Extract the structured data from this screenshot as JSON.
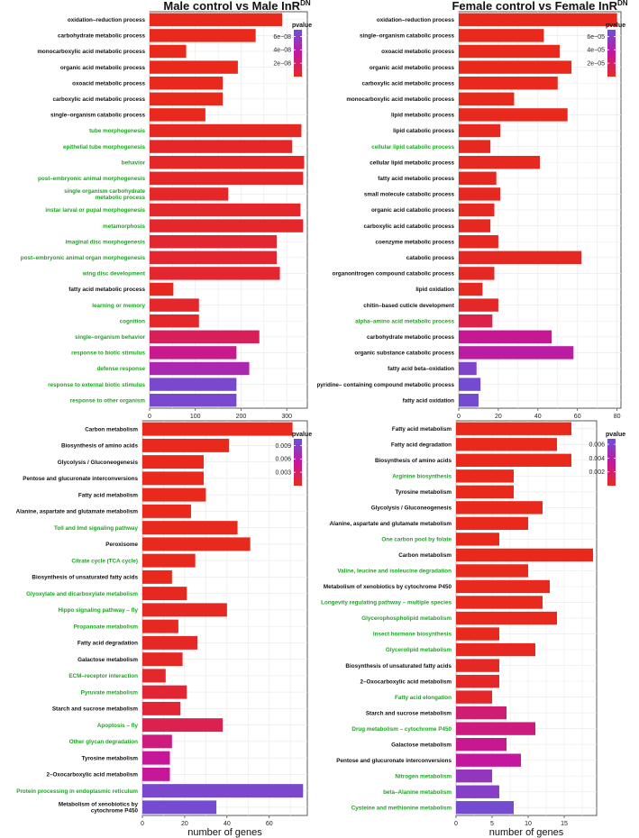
{
  "x_axis_label": "number of genes",
  "legend_title": "pvalue",
  "colors": {
    "low": "#e8291c",
    "mid": "#c4169f",
    "high": "#6a52d6",
    "green": "#1fa224",
    "black": "#111111"
  },
  "chart_data": [
    {
      "type": "bar",
      "title_main": "Male control vs Male InR",
      "title_sup": "DN",
      "xlim": [
        0,
        345
      ],
      "xticks": [
        0,
        100,
        200,
        300
      ],
      "legend_ticks": [
        2e-08,
        4e-08,
        6e-08
      ],
      "legend_labels": [
        "2e−08",
        "4e−08",
        "6e−08"
      ],
      "pmax": 7e-08,
      "categories": [
        "oxidation–reduction process",
        "carbohydrate metabolic process",
        "monocarboxylic acid metabolic process",
        "organic acid metabolic process",
        "oxoacid metabolic process",
        "carboxylic acid metabolic process",
        "single–organism catabolic process",
        "tube morphogenesis",
        "epithelial tube morphogenesis",
        "behavior",
        "post–embryonic animal morphogenesis",
        "single organism carbohydrate|metabolic process",
        "instar larval or pupal morphogenesis",
        "metamorphosis",
        "imaginal disc morphogenesis",
        "post–embryonic animal organ morphogenesis",
        "wing disc development",
        "fatty acid metabolic process",
        "learning or memory",
        "cognition",
        "single–organism behavior",
        "response to biotic stimulus",
        "defense response",
        "response to external biotic stimulus",
        "response to other organism"
      ],
      "values": [
        290,
        232,
        80,
        193,
        160,
        160,
        122,
        332,
        312,
        338,
        336,
        172,
        330,
        336,
        278,
        278,
        285,
        52,
        108,
        108,
        240,
        190,
        218,
        190,
        190
      ],
      "pvalues": [
        1e-10,
        1e-10,
        1e-10,
        1e-10,
        1e-10,
        1e-10,
        1e-10,
        2e-09,
        3e-09,
        3e-09,
        3e-09,
        3e-09,
        4e-09,
        4e-09,
        5e-09,
        5e-09,
        5e-09,
        1e-09,
        4e-09,
        4e-09,
        1.6e-08,
        3e-08,
        4.5e-08,
        6.4e-08,
        6.4e-08
      ],
      "green": [
        false,
        false,
        false,
        false,
        false,
        false,
        false,
        true,
        true,
        true,
        true,
        true,
        true,
        true,
        true,
        true,
        true,
        false,
        true,
        true,
        true,
        true,
        true,
        true,
        true
      ]
    },
    {
      "type": "bar",
      "title_main": "Female control vs Female InR",
      "title_sup": "DN",
      "xlim": [
        0,
        82
      ],
      "xticks": [
        0,
        20,
        40,
        60,
        80
      ],
      "legend_ticks": [
        2e-05,
        4e-05,
        6e-05
      ],
      "legend_labels": [
        "2e−05",
        "4e−05",
        "6e−05"
      ],
      "pmax": 7e-05,
      "categories": [
        "oxidation–reduction process",
        "single–organism catabolic process",
        "oxoacid metabolic process",
        "organic acid metabolic process",
        "carboxylic acid metabolic process",
        "monocarboxylic acid metabolic process",
        "lipid metabolic process",
        "lipid catabolic process",
        "cellular lipid catabolic process",
        "cellular lipid metabolic process",
        "fatty acid metabolic process",
        "small molecule catabolic process",
        "organic acid catabolic process",
        "carboxylic acid catabolic process",
        "coenzyme metabolic process",
        "catabolic process",
        "organonitrogen compound catabolic process",
        "lipid oxidation",
        "chitin–based cuticle development",
        "alpha–amino acid metabolic process",
        "carbohydrate metabolic process",
        "organic substance catabolic process",
        "fatty acid beta–oxidation",
        "pyridine– containing compound metabolic process",
        "fatty acid oxidation"
      ],
      "values": [
        80,
        43,
        51,
        57,
        50,
        28,
        55,
        21,
        16,
        41,
        19,
        21,
        18,
        16,
        20,
        62,
        18,
        12,
        20,
        17,
        47,
        58,
        9,
        11,
        10
      ],
      "pvalues": [
        1e-07,
        1e-07,
        1e-07,
        1e-07,
        1e-07,
        1e-07,
        2e-07,
        1e-06,
        1e-06,
        1e-06,
        1e-06,
        1e-06,
        1e-06,
        1e-06,
        1e-06,
        2e-06,
        2e-06,
        2e-06,
        3e-06,
        1.2e-05,
        3.2e-05,
        3.8e-05,
        6.2e-05,
        6.6e-05,
        6.6e-05
      ],
      "green": [
        false,
        false,
        false,
        false,
        false,
        false,
        false,
        false,
        true,
        false,
        false,
        false,
        false,
        false,
        false,
        false,
        false,
        false,
        false,
        true,
        false,
        false,
        false,
        false,
        false
      ]
    },
    {
      "type": "bar",
      "title_main": "",
      "title_sup": "",
      "xlim": [
        0,
        78
      ],
      "xticks": [
        0,
        20,
        40,
        60
      ],
      "legend_ticks": [
        0.003,
        0.006,
        0.009
      ],
      "legend_labels": [
        "0.003",
        "0.006",
        "0.009"
      ],
      "pmax": 0.0105,
      "categories": [
        "Carbon metabolism",
        "Biosynthesis of amino acids",
        "Glycolysis / Gluconeogenesis",
        "Pentose and glucuronate interconversions",
        "Fatty acid metabolism",
        "Alanine, aspartate and glutamate metabolism",
        "Toll and Imd signaling pathway",
        "Peroxisome",
        "Citrate cycle (TCA cycle)",
        "Biosynthesis of unsaturated fatty acids",
        "Glyoxylate and dicarboxylate metabolism",
        "Hippo signaling pathway – fly",
        "Propanoate metabolism",
        "Fatty acid degradation",
        "Galactose metabolism",
        "ECM–receptor interaction",
        "Pyruvate metabolism",
        "Starch and sucrose metabolism",
        "Apoptosis – fly",
        "Other glycan degradation",
        "Tyrosine metabolism",
        "2–Oxocarboxylic acid metabolism",
        "Protein processing in endoplasmic reticulum",
        "Metabolism of xenobiotics by|cytochrome P450"
      ],
      "values": [
        71,
        41,
        29,
        29,
        30,
        23,
        45,
        51,
        25,
        14,
        21,
        40,
        17,
        26,
        19,
        11,
        21,
        18,
        38,
        14,
        13,
        13,
        76,
        35
      ],
      "pvalues": [
        1e-05,
        1e-05,
        1e-05,
        1e-05,
        1e-05,
        1e-05,
        5e-05,
        5e-05,
        0.0001,
        0.0001,
        0.0002,
        0.0003,
        0.0003,
        0.0004,
        0.0004,
        0.0006,
        0.001,
        0.001,
        0.002,
        0.004,
        0.005,
        0.005,
        0.0095,
        0.01
      ],
      "green": [
        false,
        false,
        false,
        false,
        false,
        false,
        true,
        false,
        true,
        false,
        true,
        true,
        true,
        false,
        false,
        true,
        true,
        false,
        true,
        true,
        false,
        false,
        true,
        false
      ]
    },
    {
      "type": "bar",
      "title_main": "",
      "title_sup": "",
      "xlim": [
        0,
        19.5
      ],
      "xticks": [
        0,
        5,
        10,
        15
      ],
      "legend_ticks": [
        0.002,
        0.004,
        0.006
      ],
      "legend_labels": [
        "0.002",
        "0.004",
        "0.006"
      ],
      "pmax": 0.0068,
      "categories": [
        "Fatty acid metabolism",
        "Fatty acid degradation",
        "Biosynthesis of amino acids",
        "Arginine biosynthesis",
        "Tyrosine metabolism",
        "Glycolysis / Gluconeogenesis",
        "Alanine, aspartate and glutamate metabolism",
        "One carbon pool by folate",
        "Carbon metabolism",
        "Valine, leucine and isoleucine degradation",
        "Metabolism of xenobiotics by cytochrome P450",
        "Longevity regulating pathway – multiple species",
        "Glycerophospholipid metabolism",
        "Insect hormone biosynthesis",
        "Glycerolipid metabolism",
        "Biosynthesis of unsaturated fatty acids",
        "2–Oxocarboxylic acid metabolism",
        "Fatty acid elongation",
        "Starch and sucrose metabolism",
        "Drug metabolism – cytochrome P450",
        "Galactose metabolism",
        "Pentose and glucuronate interconversions",
        "Nitrogen metabolism",
        "beta–Alanine metabolism",
        "Cysteine and methionine metabolism"
      ],
      "values": [
        16,
        14,
        16,
        8,
        8,
        12,
        10,
        6,
        19,
        10,
        13,
        12,
        14,
        6,
        11,
        6,
        6,
        5,
        7,
        11,
        7,
        9,
        5,
        6,
        8
      ],
      "pvalues": [
        1e-05,
        1e-05,
        1e-05,
        1e-05,
        1e-05,
        1e-05,
        1e-05,
        1e-05,
        1e-05,
        2e-05,
        2e-05,
        3e-05,
        3e-05,
        5e-05,
        0.0001,
        0.0002,
        0.0003,
        0.0004,
        0.0022,
        0.0026,
        0.003,
        0.0034,
        0.0052,
        0.0058,
        0.0064
      ],
      "green": [
        false,
        false,
        false,
        true,
        false,
        false,
        false,
        true,
        false,
        true,
        false,
        true,
        true,
        true,
        true,
        false,
        false,
        true,
        false,
        true,
        false,
        false,
        true,
        true,
        true
      ]
    }
  ]
}
